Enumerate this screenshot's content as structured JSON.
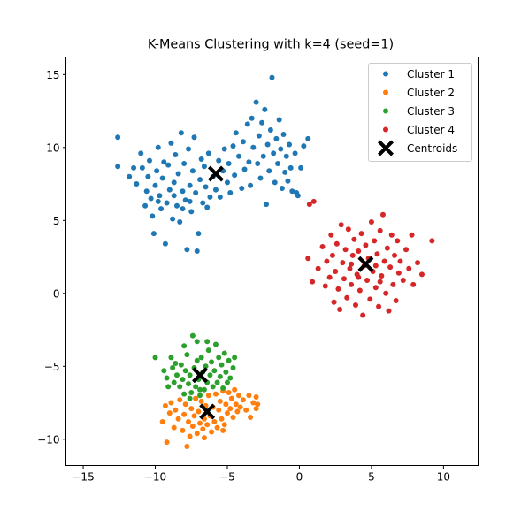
{
  "chart_data": {
    "type": "scatter",
    "title": "K-Means Clustering with k=4 (seed=1)",
    "xlabel": "",
    "ylabel": "",
    "xlim": [
      -16.2,
      12.4
    ],
    "ylim": [
      -11.8,
      16.2
    ],
    "x_ticks": [
      -15,
      -10,
      -5,
      0,
      5,
      10
    ],
    "y_ticks": [
      -10,
      -5,
      0,
      5,
      10,
      15
    ],
    "grid": false,
    "legend_position": "top-right",
    "series": [
      {
        "name": "Cluster 1",
        "color": "#1f77b4",
        "points": [
          [
            -12.6,
            10.7
          ],
          [
            -12.6,
            8.7
          ],
          [
            -11.8,
            8.0
          ],
          [
            -11.5,
            8.6
          ],
          [
            -11.3,
            7.5
          ],
          [
            -11.0,
            9.6
          ],
          [
            -10.9,
            8.6
          ],
          [
            -10.7,
            6.0
          ],
          [
            -10.6,
            7.0
          ],
          [
            -10.5,
            8.0
          ],
          [
            -10.4,
            9.1
          ],
          [
            -10.3,
            6.5
          ],
          [
            -10.2,
            5.3
          ],
          [
            -10.1,
            4.1
          ],
          [
            -10.0,
            7.4
          ],
          [
            -9.9,
            8.4
          ],
          [
            -9.8,
            10.0
          ],
          [
            -9.7,
            6.7
          ],
          [
            -9.6,
            5.8
          ],
          [
            -9.5,
            7.9
          ],
          [
            -9.4,
            9.0
          ],
          [
            -9.3,
            3.4
          ],
          [
            -9.2,
            6.2
          ],
          [
            -9.1,
            8.8
          ],
          [
            -9.0,
            7.1
          ],
          [
            -8.9,
            10.3
          ],
          [
            -8.8,
            5.1
          ],
          [
            -8.7,
            7.6
          ],
          [
            -8.6,
            9.5
          ],
          [
            -8.5,
            6.0
          ],
          [
            -8.4,
            8.2
          ],
          [
            -8.3,
            4.9
          ],
          [
            -8.2,
            11.0
          ],
          [
            -8.1,
            7.0
          ],
          [
            -8.0,
            8.9
          ],
          [
            -7.9,
            6.4
          ],
          [
            -7.8,
            3.0
          ],
          [
            -7.7,
            9.9
          ],
          [
            -7.6,
            7.4
          ],
          [
            -7.5,
            5.6
          ],
          [
            -7.4,
            8.4
          ],
          [
            -7.3,
            10.7
          ],
          [
            -7.2,
            6.9
          ],
          [
            -7.1,
            2.9
          ],
          [
            -7.0,
            4.1
          ],
          [
            -6.9,
            7.8
          ],
          [
            -6.8,
            9.2
          ],
          [
            -6.7,
            6.2
          ],
          [
            -6.6,
            8.7
          ],
          [
            -6.5,
            7.3
          ],
          [
            -6.4,
            5.9
          ],
          [
            -6.3,
            9.6
          ],
          [
            -6.2,
            6.6
          ],
          [
            -6.0,
            8.0
          ],
          [
            -5.8,
            7.1
          ],
          [
            -5.6,
            9.1
          ],
          [
            -5.5,
            6.6
          ],
          [
            -5.3,
            8.4
          ],
          [
            -5.2,
            9.9
          ],
          [
            -5.0,
            7.6
          ],
          [
            -4.9,
            8.9
          ],
          [
            -4.8,
            6.9
          ],
          [
            -4.6,
            10.1
          ],
          [
            -4.5,
            8.1
          ],
          [
            -4.4,
            11.0
          ],
          [
            -4.2,
            9.4
          ],
          [
            -4.0,
            7.2
          ],
          [
            -3.9,
            10.4
          ],
          [
            -3.8,
            8.5
          ],
          [
            -3.6,
            11.6
          ],
          [
            -3.5,
            9.0
          ],
          [
            -3.4,
            7.4
          ],
          [
            -3.3,
            12.0
          ],
          [
            -3.2,
            10.0
          ],
          [
            -3.0,
            13.1
          ],
          [
            -2.9,
            8.9
          ],
          [
            -2.8,
            10.8
          ],
          [
            -2.7,
            7.9
          ],
          [
            -2.6,
            11.7
          ],
          [
            -2.5,
            9.4
          ],
          [
            -2.4,
            12.6
          ],
          [
            -2.3,
            6.1
          ],
          [
            -2.2,
            10.2
          ],
          [
            -2.1,
            8.4
          ],
          [
            -2.0,
            11.2
          ],
          [
            -1.9,
            14.8
          ],
          [
            -1.8,
            9.6
          ],
          [
            -1.7,
            7.6
          ],
          [
            -1.6,
            10.6
          ],
          [
            -1.5,
            8.9
          ],
          [
            -1.4,
            11.9
          ],
          [
            -1.3,
            9.9
          ],
          [
            -1.2,
            7.2
          ],
          [
            -1.1,
            10.9
          ],
          [
            -1.0,
            8.3
          ],
          [
            -0.9,
            9.4
          ],
          [
            -0.8,
            7.7
          ],
          [
            -0.7,
            10.2
          ],
          [
            -0.6,
            8.6
          ],
          [
            -0.5,
            7.0
          ],
          [
            -0.3,
            9.6
          ],
          [
            -0.2,
            6.9
          ],
          [
            0.1,
            8.6
          ],
          [
            0.3,
            10.1
          ],
          [
            0.6,
            10.6
          ],
          [
            -0.1,
            6.7
          ],
          [
            -9.8,
            6.3
          ],
          [
            -8.7,
            6.7
          ],
          [
            -7.6,
            6.3
          ],
          [
            -8.1,
            5.8
          ]
        ]
      },
      {
        "name": "Cluster 2",
        "color": "#ff7f0e",
        "points": [
          [
            -9.5,
            -8.8
          ],
          [
            -9.3,
            -7.7
          ],
          [
            -9.2,
            -10.2
          ],
          [
            -9.0,
            -8.2
          ],
          [
            -8.9,
            -7.5
          ],
          [
            -8.7,
            -9.2
          ],
          [
            -8.6,
            -8.0
          ],
          [
            -8.4,
            -8.6
          ],
          [
            -8.3,
            -7.3
          ],
          [
            -8.1,
            -9.4
          ],
          [
            -8.0,
            -8.3
          ],
          [
            -7.9,
            -7.6
          ],
          [
            -7.8,
            -10.5
          ],
          [
            -7.7,
            -8.8
          ],
          [
            -7.5,
            -7.9
          ],
          [
            -7.4,
            -9.1
          ],
          [
            -7.3,
            -8.4
          ],
          [
            -7.2,
            -7.2
          ],
          [
            -7.1,
            -9.6
          ],
          [
            -7.0,
            -8.1
          ],
          [
            -6.9,
            -8.9
          ],
          [
            -6.8,
            -7.4
          ],
          [
            -6.7,
            -9.3
          ],
          [
            -6.6,
            -8.6
          ],
          [
            -6.5,
            -7.7
          ],
          [
            -6.4,
            -9.0
          ],
          [
            -6.3,
            -7.0
          ],
          [
            -6.2,
            -8.4
          ],
          [
            -6.1,
            -9.5
          ],
          [
            -6.0,
            -7.8
          ],
          [
            -5.9,
            -8.8
          ],
          [
            -5.8,
            -6.9
          ],
          [
            -5.7,
            -9.2
          ],
          [
            -5.6,
            -8.0
          ],
          [
            -5.5,
            -7.4
          ],
          [
            -5.4,
            -8.6
          ],
          [
            -5.3,
            -6.7
          ],
          [
            -5.2,
            -9.0
          ],
          [
            -5.1,
            -7.6
          ],
          [
            -5.0,
            -8.2
          ],
          [
            -4.9,
            -6.8
          ],
          [
            -4.8,
            -7.9
          ],
          [
            -4.7,
            -7.2
          ],
          [
            -4.6,
            -8.5
          ],
          [
            -4.5,
            -6.6
          ],
          [
            -4.4,
            -7.6
          ],
          [
            -4.3,
            -8.1
          ],
          [
            -4.2,
            -7.0
          ],
          [
            -4.1,
            -7.8
          ],
          [
            -3.9,
            -7.3
          ],
          [
            -3.7,
            -8.0
          ],
          [
            -3.5,
            -7.0
          ],
          [
            -3.4,
            -8.5
          ],
          [
            -3.2,
            -7.5
          ],
          [
            -3.0,
            -7.1
          ],
          [
            -3.0,
            -7.9
          ],
          [
            -2.9,
            -7.6
          ],
          [
            -6.6,
            -9.9
          ],
          [
            -7.6,
            -9.8
          ],
          [
            -5.3,
            -9.4
          ]
        ]
      },
      {
        "name": "Cluster 3",
        "color": "#2ca02c",
        "points": [
          [
            -10.0,
            -4.4
          ],
          [
            -9.4,
            -5.3
          ],
          [
            -9.2,
            -5.8
          ],
          [
            -8.9,
            -4.4
          ],
          [
            -8.8,
            -5.1
          ],
          [
            -8.7,
            -6.1
          ],
          [
            -8.6,
            -4.8
          ],
          [
            -8.5,
            -5.6
          ],
          [
            -8.3,
            -6.4
          ],
          [
            -8.2,
            -4.9
          ],
          [
            -8.1,
            -5.9
          ],
          [
            -8.0,
            -6.9
          ],
          [
            -7.9,
            -5.3
          ],
          [
            -7.8,
            -4.2
          ],
          [
            -7.7,
            -6.2
          ],
          [
            -7.6,
            -5.6
          ],
          [
            -7.5,
            -6.8
          ],
          [
            -7.4,
            -2.9
          ],
          [
            -7.3,
            -5.1
          ],
          [
            -7.2,
            -6.4
          ],
          [
            -7.1,
            -4.6
          ],
          [
            -7.0,
            -5.9
          ],
          [
            -6.9,
            -7.0
          ],
          [
            -6.8,
            -4.4
          ],
          [
            -6.7,
            -5.4
          ],
          [
            -6.6,
            -6.6
          ],
          [
            -6.5,
            -5.0
          ],
          [
            -6.4,
            -6.1
          ],
          [
            -6.3,
            -3.9
          ],
          [
            -6.2,
            -5.6
          ],
          [
            -6.1,
            -4.7
          ],
          [
            -6.0,
            -6.4
          ],
          [
            -5.9,
            -5.3
          ],
          [
            -5.8,
            -3.5
          ],
          [
            -5.7,
            -6.1
          ],
          [
            -5.6,
            -4.4
          ],
          [
            -5.5,
            -5.7
          ],
          [
            -5.4,
            -4.9
          ],
          [
            -5.3,
            -6.5
          ],
          [
            -5.2,
            -4.1
          ],
          [
            -5.1,
            -5.4
          ],
          [
            -5.0,
            -6.1
          ],
          [
            -4.9,
            -4.6
          ],
          [
            -4.8,
            -5.8
          ],
          [
            -4.6,
            -5.1
          ],
          [
            -4.5,
            -4.4
          ],
          [
            -8.0,
            -3.6
          ],
          [
            -7.1,
            -3.3
          ],
          [
            -6.4,
            -3.3
          ],
          [
            -9.1,
            -6.4
          ],
          [
            -7.6,
            -7.2
          ],
          [
            -6.9,
            -6.6
          ]
        ]
      },
      {
        "name": "Cluster 4",
        "color": "#d62728",
        "points": [
          [
            0.7,
            6.1
          ],
          [
            1.0,
            6.3
          ],
          [
            0.6,
            2.4
          ],
          [
            0.9,
            0.8
          ],
          [
            1.3,
            1.7
          ],
          [
            1.6,
            3.2
          ],
          [
            1.8,
            0.5
          ],
          [
            1.9,
            2.2
          ],
          [
            2.1,
            1.1
          ],
          [
            2.2,
            4.0
          ],
          [
            2.3,
            2.6
          ],
          [
            2.4,
            -0.6
          ],
          [
            2.5,
            1.5
          ],
          [
            2.6,
            3.4
          ],
          [
            2.7,
            0.3
          ],
          [
            2.8,
            -1.1
          ],
          [
            2.9,
            4.7
          ],
          [
            3.0,
            2.1
          ],
          [
            3.1,
            1.0
          ],
          [
            3.2,
            3.0
          ],
          [
            3.3,
            -0.3
          ],
          [
            3.4,
            4.4
          ],
          [
            3.5,
            1.7
          ],
          [
            3.6,
            0.6
          ],
          [
            3.7,
            2.6
          ],
          [
            3.8,
            3.7
          ],
          [
            3.9,
            -0.8
          ],
          [
            4.0,
            1.3
          ],
          [
            4.1,
            2.9
          ],
          [
            4.2,
            0.2
          ],
          [
            4.3,
            4.1
          ],
          [
            4.4,
            -1.5
          ],
          [
            4.5,
            1.9
          ],
          [
            4.6,
            3.3
          ],
          [
            4.7,
            0.9
          ],
          [
            4.8,
            2.4
          ],
          [
            4.9,
            -0.4
          ],
          [
            5.0,
            4.9
          ],
          [
            5.1,
            1.5
          ],
          [
            5.2,
            3.6
          ],
          [
            5.3,
            0.4
          ],
          [
            5.4,
            2.7
          ],
          [
            5.5,
            -0.9
          ],
          [
            5.6,
            4.3
          ],
          [
            5.7,
            1.2
          ],
          [
            5.8,
            5.4
          ],
          [
            5.9,
            2.2
          ],
          [
            6.0,
            0.0
          ],
          [
            6.1,
            3.1
          ],
          [
            6.2,
            -1.2
          ],
          [
            6.3,
            1.8
          ],
          [
            6.4,
            4.0
          ],
          [
            6.5,
            0.6
          ],
          [
            6.6,
            2.6
          ],
          [
            6.7,
            -0.5
          ],
          [
            6.8,
            3.6
          ],
          [
            6.9,
            1.4
          ],
          [
            7.0,
            2.2
          ],
          [
            7.2,
            0.9
          ],
          [
            7.4,
            3.0
          ],
          [
            7.6,
            1.7
          ],
          [
            7.8,
            4.0
          ],
          [
            7.9,
            0.6
          ],
          [
            8.2,
            2.1
          ],
          [
            8.5,
            1.3
          ],
          [
            9.2,
            3.6
          ],
          [
            5.3,
            1.9
          ],
          [
            4.1,
            1.1
          ],
          [
            3.6,
            2.0
          ],
          [
            5.6,
            0.8
          ]
        ]
      }
    ],
    "centroids": {
      "name": "Centroids",
      "color": "#000000",
      "points": [
        [
          -5.8,
          8.2
        ],
        [
          -6.4,
          -8.1
        ],
        [
          -6.9,
          -5.6
        ],
        [
          4.6,
          2.0
        ]
      ]
    }
  }
}
